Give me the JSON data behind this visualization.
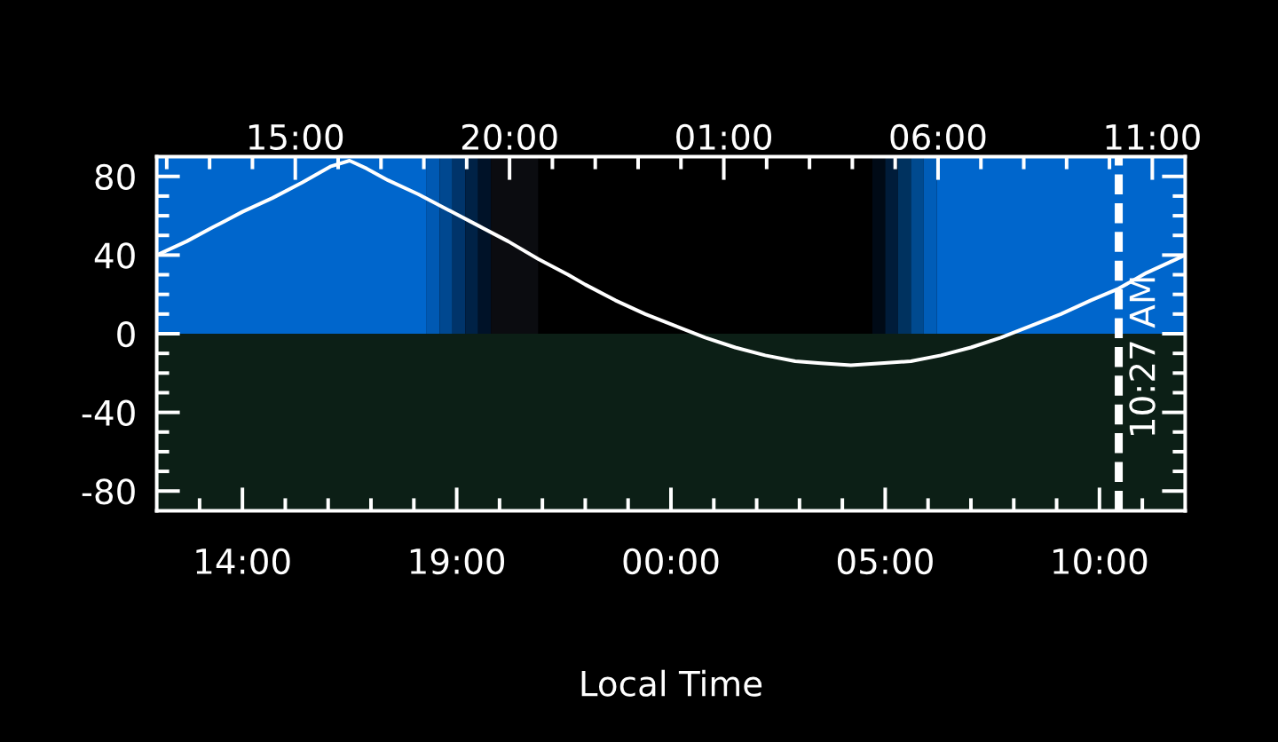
{
  "chart_data": {
    "type": "line",
    "xlabel": "Local Time",
    "x": [
      "2000-01-01T12:00",
      "2000-01-01T12:42",
      "2000-01-01T13:18",
      "2000-01-01T14:00",
      "2000-01-01T14:42",
      "2000-01-01T15:24",
      "2000-01-01T16:03",
      "2000-01-01T16:30",
      "2000-01-01T16:54",
      "2000-01-01T17:24",
      "2000-01-01T18:06",
      "2000-01-01T18:48",
      "2000-01-01T19:30",
      "2000-01-01T20:12",
      "2000-01-01T20:54",
      "2000-01-01T21:36",
      "2000-01-01T22:00",
      "2000-01-01T22:42",
      "2000-01-01T23:24",
      "2000-01-02T00:06",
      "2000-01-02T00:48",
      "2000-01-02T01:30",
      "2000-01-02T02:12",
      "2000-01-02T02:54",
      "2000-01-02T03:30",
      "2000-01-02T04:12",
      "2000-01-02T04:54",
      "2000-01-02T05:36",
      "2000-01-02T06:18",
      "2000-01-02T07:00",
      "2000-01-02T07:42",
      "2000-01-02T08:24",
      "2000-01-02T09:06",
      "2000-01-02T09:48",
      "2000-01-02T10:27",
      "2000-01-02T11:06",
      "2000-01-02T11:48",
      "2000-01-02T12:00"
    ],
    "series": [
      {
        "color": "#ffffff",
        "values": [
          40,
          47,
          54,
          62,
          69,
          77,
          85,
          88,
          84,
          78,
          71,
          63,
          55,
          47,
          38,
          30,
          25,
          17,
          10,
          4,
          -2,
          -7,
          -11,
          -14,
          -15,
          -16,
          -15,
          -14,
          -11,
          -7,
          -2,
          4,
          10,
          17,
          23,
          31,
          38,
          40
        ]
      }
    ],
    "xlim": [
      "2000-01-01T12:00",
      "2000-01-02T12:00"
    ],
    "xticks": [
      {
        "value": "2000-01-01T13:00",
        "label": null
      },
      {
        "value": "2000-01-01T14:00",
        "label": "14:00"
      },
      {
        "value": "2000-01-01T15:00",
        "label": null
      },
      {
        "value": "2000-01-01T16:00",
        "label": null
      },
      {
        "value": "2000-01-01T17:00",
        "label": null
      },
      {
        "value": "2000-01-01T18:00",
        "label": null
      },
      {
        "value": "2000-01-01T19:00",
        "label": "19:00"
      },
      {
        "value": "2000-01-01T20:00",
        "label": null
      },
      {
        "value": "2000-01-01T21:00",
        "label": null
      },
      {
        "value": "2000-01-01T22:00",
        "label": null
      },
      {
        "value": "2000-01-01T23:00",
        "label": null
      },
      {
        "value": "2000-01-02T00:00",
        "label": "00:00"
      },
      {
        "value": "2000-01-02T01:00",
        "label": null
      },
      {
        "value": "2000-01-02T02:00",
        "label": null
      },
      {
        "value": "2000-01-02T03:00",
        "label": null
      },
      {
        "value": "2000-01-02T04:00",
        "label": null
      },
      {
        "value": "2000-01-02T05:00",
        "label": "05:00"
      },
      {
        "value": "2000-01-02T06:00",
        "label": null
      },
      {
        "value": "2000-01-02T07:00",
        "label": null
      },
      {
        "value": "2000-01-02T08:00",
        "label": null
      },
      {
        "value": "2000-01-02T09:00",
        "label": null
      },
      {
        "value": "2000-01-02T10:00",
        "label": "10:00"
      },
      {
        "value": "2000-01-02T11:00",
        "label": null
      }
    ],
    "x2lim": [
      "2000-01-01T11:46",
      "2000-01-02T11:46"
    ],
    "x2ticks": [
      {
        "value": "2000-01-01T12:00",
        "label": null
      },
      {
        "value": "2000-01-01T13:00",
        "label": null
      },
      {
        "value": "2000-01-01T14:00",
        "label": null
      },
      {
        "value": "2000-01-01T15:00",
        "label": "15:00"
      },
      {
        "value": "2000-01-01T16:00",
        "label": null
      },
      {
        "value": "2000-01-01T17:00",
        "label": null
      },
      {
        "value": "2000-01-01T18:00",
        "label": null
      },
      {
        "value": "2000-01-01T19:00",
        "label": null
      },
      {
        "value": "2000-01-01T20:00",
        "label": "20:00"
      },
      {
        "value": "2000-01-01T21:00",
        "label": null
      },
      {
        "value": "2000-01-01T22:00",
        "label": null
      },
      {
        "value": "2000-01-01T23:00",
        "label": null
      },
      {
        "value": "2000-01-02T00:00",
        "label": null
      },
      {
        "value": "2000-01-02T01:00",
        "label": "01:00"
      },
      {
        "value": "2000-01-02T02:00",
        "label": null
      },
      {
        "value": "2000-01-02T03:00",
        "label": null
      },
      {
        "value": "2000-01-02T04:00",
        "label": null
      },
      {
        "value": "2000-01-02T05:00",
        "label": null
      },
      {
        "value": "2000-01-02T06:00",
        "label": "06:00"
      },
      {
        "value": "2000-01-02T07:00",
        "label": null
      },
      {
        "value": "2000-01-02T08:00",
        "label": null
      },
      {
        "value": "2000-01-02T09:00",
        "label": null
      },
      {
        "value": "2000-01-02T10:00",
        "label": null
      },
      {
        "value": "2000-01-02T11:00",
        "label": "11:00"
      }
    ],
    "ylim": [
      -90,
      90
    ],
    "yticks": [
      -80,
      {
        "value": -70,
        "label": null
      },
      {
        "value": -60,
        "label": null
      },
      {
        "value": -50,
        "label": null
      },
      -40,
      {
        "value": -30,
        "label": null
      },
      {
        "value": -20,
        "label": null
      },
      {
        "value": -10,
        "label": null
      },
      0,
      {
        "value": 10,
        "label": null
      },
      {
        "value": 20,
        "label": null
      },
      {
        "value": 30,
        "label": null
      },
      40,
      {
        "value": 50,
        "label": null
      },
      {
        "value": 60,
        "label": null
      },
      {
        "value": 70,
        "label": null
      },
      80
    ],
    "ref_lines": [
      {
        "axis": "x",
        "value": "2000-01-02T10:27",
        "label": "10:27 AM",
        "color": "#ffffff",
        "line_style": "dashed"
      }
    ],
    "bands": [
      {
        "axis": "y",
        "from": -90,
        "to": 0,
        "color": "#0c1f16"
      },
      {
        "axis": "x",
        "from": "2000-01-01T12:00",
        "to": "2000-01-01T18:18",
        "color": "#0066cc"
      },
      {
        "axis": "x",
        "from": "2000-01-01T18:18",
        "to": "2000-01-01T18:36",
        "color": "#0059b3"
      },
      {
        "axis": "x",
        "from": "2000-01-01T18:36",
        "to": "2000-01-01T18:54",
        "color": "#004890"
      },
      {
        "axis": "x",
        "from": "2000-01-01T18:54",
        "to": "2000-01-01T19:12",
        "color": "#00346a"
      },
      {
        "axis": "x",
        "from": "2000-01-01T19:12",
        "to": "2000-01-01T19:30",
        "color": "#002246"
      },
      {
        "axis": "x",
        "from": "2000-01-01T19:30",
        "to": "2000-01-01T19:48",
        "color": "#001228"
      },
      {
        "axis": "x",
        "from": "2000-01-01T19:48",
        "to": "2000-01-01T20:54",
        "color": "#0b0c10"
      },
      {
        "axis": "x",
        "from": "2000-01-02T04:42",
        "to": "2000-01-02T05:00",
        "color": "#000a16"
      },
      {
        "axis": "x",
        "from": "2000-01-02T05:00",
        "to": "2000-01-02T05:18",
        "color": "#001c3a"
      },
      {
        "axis": "x",
        "from": "2000-01-02T05:18",
        "to": "2000-01-02T05:36",
        "color": "#00325f"
      },
      {
        "axis": "x",
        "from": "2000-01-02T05:36",
        "to": "2000-01-02T05:54",
        "color": "#004a8f"
      },
      {
        "axis": "x",
        "from": "2000-01-02T05:54",
        "to": "2000-01-02T06:12",
        "color": "#005db8"
      },
      {
        "axis": "x",
        "from": "2000-01-02T06:12",
        "to": "2000-01-02T12:00",
        "color": "#0066cc"
      }
    ]
  }
}
